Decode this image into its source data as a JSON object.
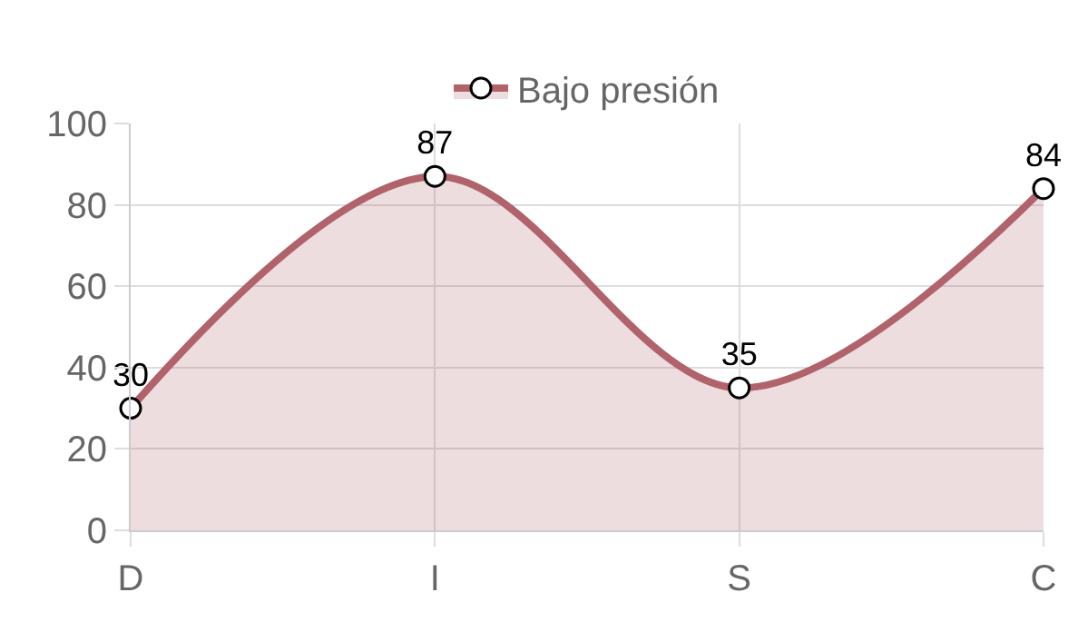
{
  "chart_data": {
    "type": "area",
    "categories": [
      "D",
      "I",
      "S",
      "C"
    ],
    "series": [
      {
        "name": "Bajo presión",
        "color": "#b0636b",
        "values": [
          30,
          87,
          35,
          84
        ]
      }
    ],
    "ylim": [
      0,
      100
    ],
    "yticks": [
      0,
      20,
      40,
      60,
      80,
      100
    ],
    "grid": true,
    "legend": "top",
    "marker": "circle",
    "data_labels": true
  }
}
